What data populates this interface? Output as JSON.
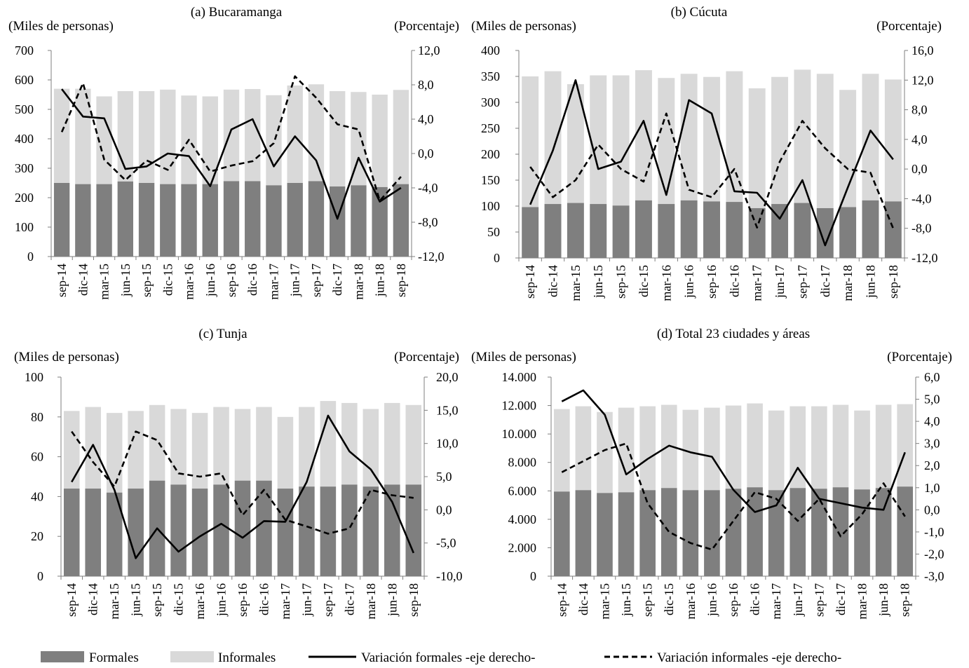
{
  "colors": {
    "formales": "#7f7f7f",
    "informales": "#d9d9d9",
    "line": "#000000",
    "axis": "#7f7f7f"
  },
  "legend": {
    "formales": "Formales",
    "informales": "Informales",
    "var_formales": "Variación formales -eje derecho-",
    "var_informales": "Variación informales -eje derecho-"
  },
  "chart_data": [
    {
      "type": "bar",
      "title": "(a) Bucaramanga",
      "ylabel": "(Miles de personas)",
      "y2label": "(Porcentaje)",
      "categories": [
        "sep-14",
        "dic-14",
        "mar-15",
        "jun-15",
        "sep-15",
        "dic-15",
        "mar-16",
        "jun-16",
        "sep-16",
        "dic-16",
        "mar-17",
        "jun-17",
        "sep-17",
        "dic-17",
        "mar-18",
        "jun-18",
        "sep-18"
      ],
      "ylim": [
        0,
        700
      ],
      "yticks": [
        0,
        100,
        200,
        300,
        400,
        500,
        600,
        700
      ],
      "yticklabels": [
        "0",
        "100",
        "200",
        "300",
        "400",
        "500",
        "600",
        "700"
      ],
      "y2lim": [
        -12,
        12
      ],
      "y2ticks": [
        -12,
        -8,
        -4,
        0,
        4,
        8,
        12
      ],
      "y2ticklabels": [
        "-12,0",
        "-8,0",
        "-4,0",
        "0,0",
        "4,0",
        "8,0",
        "12,0"
      ],
      "series": [
        {
          "name": "Formales",
          "kind": "bar",
          "values": [
            250,
            246,
            246,
            255,
            250,
            246,
            246,
            246,
            256,
            256,
            242,
            250,
            256,
            238,
            242,
            236,
            246
          ]
        },
        {
          "name": "Informales",
          "kind": "bar",
          "values": [
            320,
            324,
            298,
            307,
            312,
            321,
            301,
            298,
            311,
            313,
            306,
            331,
            329,
            324,
            317,
            314,
            320
          ]
        },
        {
          "name": "Variación formales -eje derecho-",
          "kind": "line",
          "axis": "right",
          "values": [
            7.5,
            4.3,
            4.1,
            -1.8,
            -1.5,
            0.0,
            -0.3,
            -3.8,
            2.8,
            4.0,
            -1.5,
            2.0,
            -0.8,
            -7.6,
            -0.5,
            -5.6,
            -4.0
          ]
        },
        {
          "name": "Variación informales -eje derecho-",
          "kind": "line",
          "axis": "right",
          "dash": true,
          "values": [
            2.5,
            8.2,
            -0.7,
            -3.1,
            -0.8,
            -1.9,
            1.6,
            -2.1,
            -1.4,
            -0.9,
            1.2,
            9.0,
            6.5,
            3.4,
            2.8,
            -5.5,
            -2.7
          ]
        }
      ]
    },
    {
      "type": "bar",
      "title": "(b) Cúcuta",
      "ylabel": "(Miles de personas)",
      "y2label": "(Porcentaje)",
      "categories": [
        "sep-14",
        "dic-14",
        "mar-15",
        "jun-15",
        "sep-15",
        "dic-15",
        "mar-16",
        "jun-16",
        "sep-16",
        "dic-16",
        "mar-17",
        "jun-17",
        "sep-17",
        "dic-17",
        "mar-18",
        "jun-18",
        "sep-18"
      ],
      "ylim": [
        0,
        400
      ],
      "yticks": [
        0,
        50,
        100,
        150,
        200,
        250,
        300,
        350,
        400
      ],
      "yticklabels": [
        "0",
        "50",
        "100",
        "150",
        "200",
        "250",
        "300",
        "350",
        "400"
      ],
      "y2lim": [
        -12,
        16
      ],
      "y2ticks": [
        -12,
        -8,
        -4,
        0,
        4,
        8,
        12,
        16
      ],
      "y2ticklabels": [
        "-12,0",
        "-8,0",
        "-4,0",
        "0,0",
        "4,0",
        "8,0",
        "12,0",
        "16,0"
      ],
      "series": [
        {
          "name": "Formales",
          "kind": "bar",
          "values": [
            98,
            104,
            106,
            104,
            101,
            111,
            104,
            111,
            109,
            108,
            96,
            104,
            106,
            96,
            98,
            111,
            109
          ]
        },
        {
          "name": "Informales",
          "kind": "bar",
          "values": [
            252,
            256,
            229,
            248,
            251,
            251,
            243,
            244,
            240,
            252,
            231,
            245,
            257,
            259,
            226,
            244,
            235
          ]
        },
        {
          "name": "Variación formales -eje derecho-",
          "kind": "line",
          "axis": "right",
          "values": [
            -4.8,
            2.5,
            12.0,
            0.0,
            1.0,
            6.5,
            -3.5,
            9.3,
            7.5,
            -3.0,
            -3.2,
            -6.7,
            -1.5,
            -10.3,
            -2.5,
            5.2,
            1.3
          ]
        },
        {
          "name": "Variación informales -eje derecho-",
          "kind": "line",
          "axis": "right",
          "dash": true,
          "values": [
            0.3,
            -3.8,
            -1.5,
            3.3,
            0.0,
            -1.7,
            7.5,
            -2.8,
            -3.8,
            0.0,
            -7.9,
            1.0,
            6.5,
            2.8,
            0.0,
            -0.5,
            -8.0
          ]
        }
      ]
    },
    {
      "type": "bar",
      "title": "(c) Tunja",
      "ylabel": "(Miles de personas)",
      "y2label": "(Porcentaje)",
      "categories": [
        "sep-14",
        "dic-14",
        "mar-15",
        "jun-15",
        "sep-15",
        "dic-15",
        "mar-16",
        "jun-16",
        "sep-16",
        "dic-16",
        "mar-17",
        "jun-17",
        "sep-17",
        "dic-17",
        "mar-18",
        "jun-18",
        "sep-18"
      ],
      "ylim": [
        0,
        100
      ],
      "yticks": [
        0,
        20,
        40,
        60,
        80,
        100
      ],
      "yticklabels": [
        "0",
        "20",
        "40",
        "60",
        "80",
        "100"
      ],
      "y2lim": [
        -10,
        20
      ],
      "y2ticks": [
        -10,
        -5,
        0,
        5,
        10,
        15,
        20
      ],
      "y2ticklabels": [
        "-10,0",
        "-5,0",
        "0,0",
        "5,0",
        "10,0",
        "15,0",
        "20,0"
      ],
      "series": [
        {
          "name": "Formales",
          "kind": "bar",
          "values": [
            44,
            44,
            42,
            44,
            48,
            46,
            44,
            46,
            48,
            48,
            44,
            45,
            45,
            46,
            45,
            46,
            46
          ]
        },
        {
          "name": "Informales",
          "kind": "bar",
          "values": [
            39,
            41,
            40,
            39,
            38,
            38,
            38,
            39,
            36,
            37,
            36,
            40,
            43,
            41,
            39,
            41,
            40
          ]
        },
        {
          "name": "Variación formales -eje derecho-",
          "kind": "line",
          "axis": "right",
          "values": [
            4.2,
            9.8,
            3.0,
            -7.3,
            -2.8,
            -6.3,
            -4.0,
            -2.1,
            -4.2,
            -1.7,
            -1.8,
            4.2,
            14.2,
            8.8,
            6.1,
            1.2,
            -6.5
          ]
        },
        {
          "name": "Variación informales -eje derecho-",
          "kind": "line",
          "axis": "right",
          "dash": true,
          "values": [
            11.8,
            7.2,
            3.5,
            11.8,
            10.5,
            5.5,
            5.0,
            5.5,
            -0.8,
            3.0,
            -1.5,
            -2.5,
            -3.6,
            -2.8,
            3.0,
            2.2,
            1.8
          ]
        }
      ]
    },
    {
      "type": "bar",
      "title": "(d) Total 23 ciudades y áreas",
      "ylabel": "(Miles de personas)",
      "y2label": "(Porcentaje)",
      "categories": [
        "sep-14",
        "dic-14",
        "mar-15",
        "jun-15",
        "sep-15",
        "dic-15",
        "mar-16",
        "jun-16",
        "sep-16",
        "dic-16",
        "mar-17",
        "jun-17",
        "sep-17",
        "dic-17",
        "mar-18",
        "jun-18",
        "sep-18"
      ],
      "ylim": [
        0,
        14000
      ],
      "yticks": [
        0,
        2000,
        4000,
        6000,
        8000,
        10000,
        12000,
        14000
      ],
      "yticklabels": [
        "0",
        "2.000",
        "4.000",
        "6.000",
        "8.000",
        "10.000",
        "12.000",
        "14.000"
      ],
      "y2lim": [
        -3,
        6
      ],
      "y2ticks": [
        -3,
        -2,
        -1,
        0,
        1,
        2,
        3,
        4,
        5,
        6
      ],
      "y2ticklabels": [
        "-3,0",
        "-2,0",
        "-1,0",
        "0,0",
        "1,0",
        "2,0",
        "3,0",
        "4,0",
        "5,0",
        "6,0"
      ],
      "series": [
        {
          "name": "Formales",
          "kind": "bar",
          "values": [
            5950,
            6050,
            5850,
            5900,
            6050,
            6200,
            6050,
            6050,
            6150,
            6250,
            6050,
            6200,
            6150,
            6250,
            6100,
            6200,
            6300
          ]
        },
        {
          "name": "Informales",
          "kind": "bar",
          "values": [
            5800,
            5900,
            5700,
            5950,
            5900,
            5850,
            5650,
            5800,
            5850,
            5900,
            5600,
            5750,
            5800,
            5800,
            5550,
            5850,
            5800
          ]
        },
        {
          "name": "Variación formales -eje derecho-",
          "kind": "line",
          "axis": "right",
          "values": [
            4.9,
            5.4,
            4.3,
            1.6,
            2.3,
            2.9,
            2.6,
            2.4,
            0.9,
            -0.1,
            0.2,
            1.9,
            0.5,
            0.3,
            0.1,
            0.0,
            2.6
          ]
        },
        {
          "name": "Variación informales -eje derecho-",
          "kind": "line",
          "axis": "right",
          "dash": true,
          "values": [
            1.7,
            2.2,
            2.7,
            3.0,
            0.3,
            -1.0,
            -1.5,
            -1.8,
            -0.5,
            0.8,
            0.5,
            -0.5,
            0.5,
            -1.2,
            -0.2,
            1.2,
            -0.3
          ]
        }
      ]
    }
  ]
}
